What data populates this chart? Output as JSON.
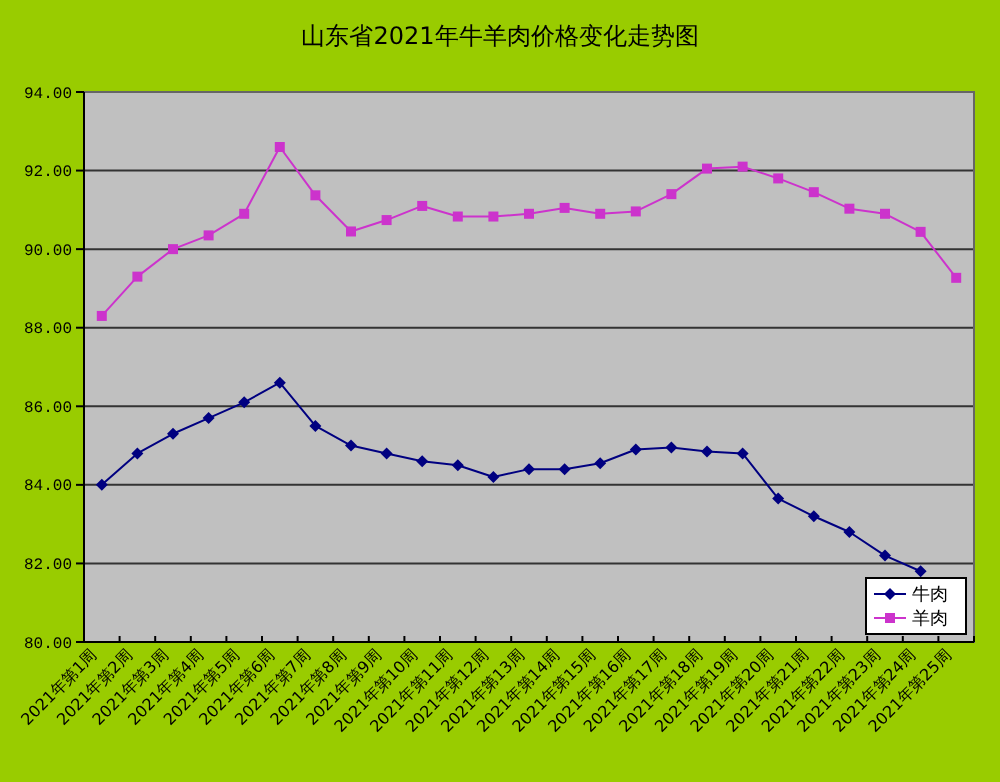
{
  "chart_data": {
    "type": "line",
    "title": "山东省2021年牛羊肉价格变化走势图",
    "categories": [
      "2021年第1周",
      "2021年第2周",
      "2021年第3周",
      "2021年第4周",
      "2021年第5周",
      "2021年第6周",
      "2021年第7周",
      "2021年第8周",
      "2021年第9周",
      "2021年第10周",
      "2021年第11周",
      "2021年第12周",
      "2021年第13周",
      "2021年第14周",
      "2021年第15周",
      "2021年第16周",
      "2021年第17周",
      "2021年第18周",
      "2021年第19周",
      "2021年第20周",
      "2021年第21周",
      "2021年第22周",
      "2021年第23周",
      "2021年第24周",
      "2021年第25周"
    ],
    "series": [
      {
        "name": "牛肉",
        "color": "#000080",
        "marker": "diamond",
        "values": [
          84.0,
          84.8,
          85.3,
          85.7,
          86.1,
          86.6,
          85.5,
          85.0,
          84.8,
          84.6,
          84.5,
          84.2,
          84.4,
          84.4,
          84.55,
          84.9,
          84.95,
          84.85,
          84.8,
          83.65,
          83.2,
          82.8,
          82.2,
          81.8,
          null
        ]
      },
      {
        "name": "羊肉",
        "color": "#cc33cc",
        "marker": "square",
        "values": [
          88.3,
          89.3,
          90.0,
          90.35,
          90.9,
          92.6,
          91.37,
          90.45,
          90.74,
          91.1,
          90.83,
          90.83,
          90.9,
          91.05,
          90.9,
          90.96,
          91.4,
          92.05,
          92.1,
          91.8,
          91.45,
          91.03,
          90.9,
          90.44,
          89.27
        ]
      }
    ],
    "ylim": [
      80,
      94
    ],
    "yticks": [
      {
        "value": 80,
        "label": "80.00"
      },
      {
        "value": 82,
        "label": "82.00"
      },
      {
        "value": 84,
        "label": "84.00"
      },
      {
        "value": 86,
        "label": "86.00"
      },
      {
        "value": 88,
        "label": "88.00"
      },
      {
        "value": 90,
        "label": "90.00"
      },
      {
        "value": 92,
        "label": "92.00"
      },
      {
        "value": 94,
        "label": "94.00"
      }
    ],
    "grid": "y",
    "legend": "bottom right",
    "line_style": "solid"
  }
}
